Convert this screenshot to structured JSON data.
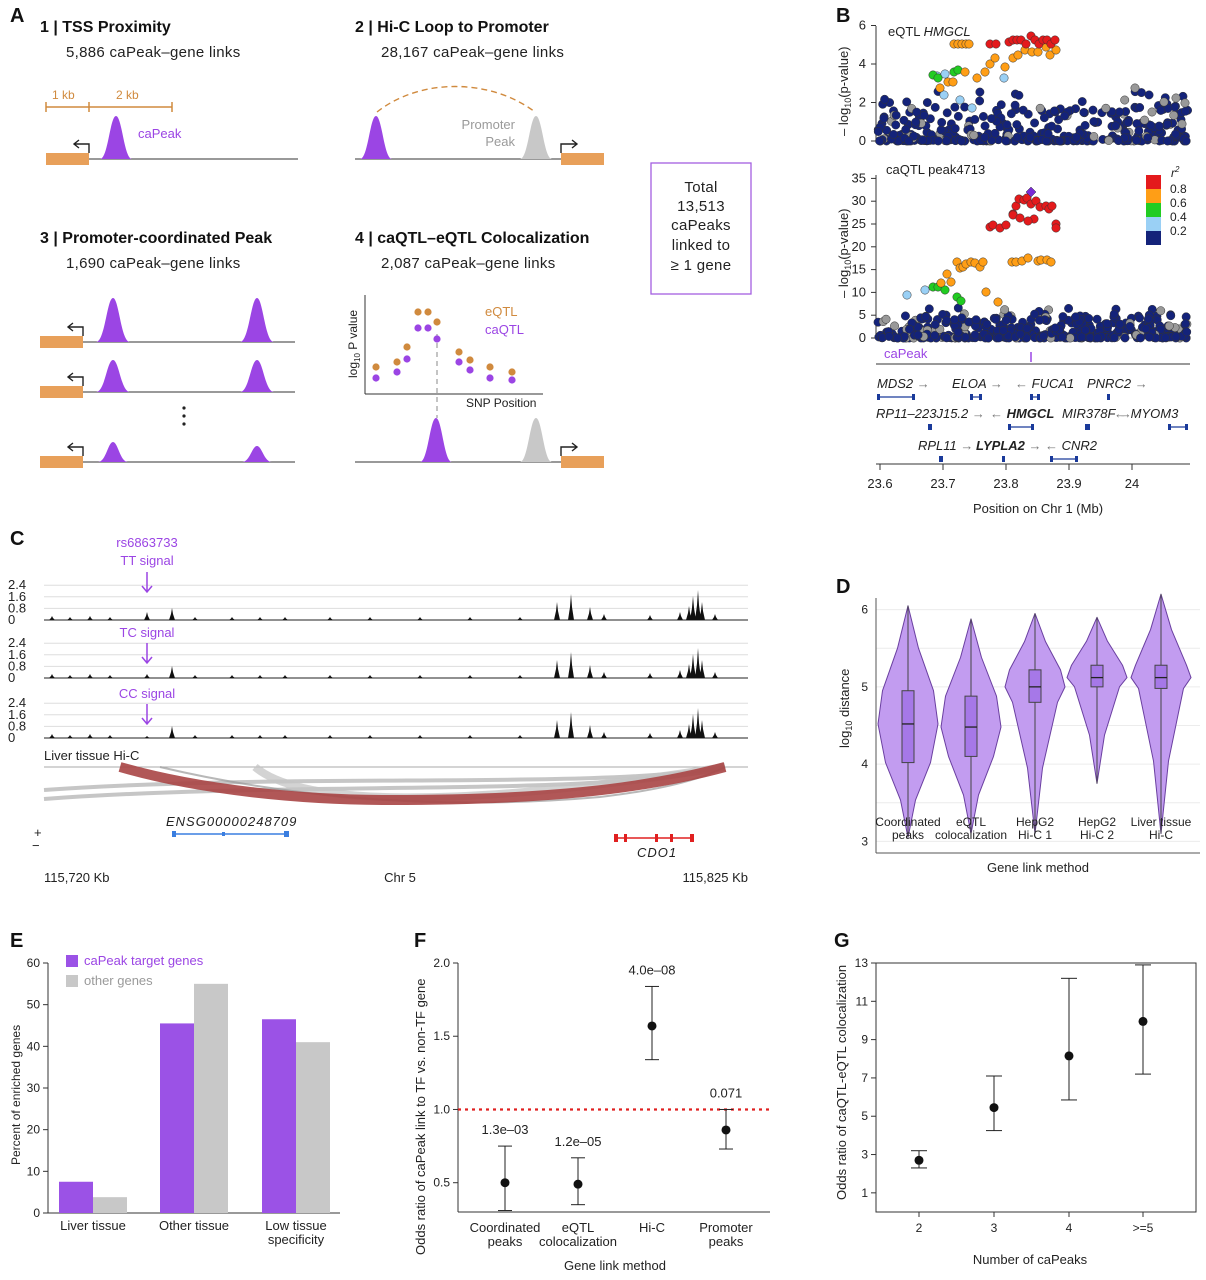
{
  "figure": {
    "panel_labels": [
      "A",
      "B",
      "C",
      "D",
      "E",
      "F",
      "G"
    ],
    "colors": {
      "purple": "#9b45e4",
      "orange": "#d08a3e",
      "gray": "#c8c8c8",
      "red": "#e02020",
      "navy": "#1a237e"
    },
    "panelA": {
      "methods": [
        {
          "title": "1 | TSS Proximity",
          "links": "5,886 caPeak–gene links"
        },
        {
          "title": "2 | Hi-C Loop to Promoter",
          "links": "28,167 caPeak–gene links"
        },
        {
          "title": "3 | Promoter-coordinated Peak",
          "links": "1,690 caPeak–gene links"
        },
        {
          "title": "4 | caQTL–eQTL Colocalization",
          "links": "2,087 caPeak–gene links"
        }
      ],
      "label_1kb": "1 kb",
      "label_2kb": "2 kb",
      "capeak_label": "caPeak",
      "promoter_peak_1": "Promoter",
      "promoter_peak_2": "Peak",
      "legend_eqtl": "eQTL",
      "legend_caqtl": "caQTL",
      "ylabel_prefix": "log",
      "ylabel_sub": "10",
      "ylabel_suffix": " P value",
      "xlabel": "SNP Position",
      "total_lines": [
        "Total",
        "13,513",
        "caPeaks",
        "linked to",
        "≥ 1 gene"
      ]
    },
    "panelB": {
      "top_title_prefix": "eQTL ",
      "top_title_gene": "HMGCL",
      "bottom_title": "caQTL peak4713",
      "top_yticks": [
        "0",
        "2",
        "4",
        "6"
      ],
      "bottom_yticks": [
        "0",
        "5",
        "10",
        "15",
        "20",
        "25",
        "30",
        "35"
      ],
      "ylabel_prefix": "– log",
      "ylabel_sub": "10",
      "ylabel_suffix": "(p-value)",
      "legend_title": "r",
      "legend_title_sup": "2",
      "legend_ticks": [
        "0.8",
        "0.6",
        "0.4",
        "0.2"
      ],
      "capeak_label": "caPeak",
      "genes": [
        {
          "name": "MDS2",
          "dir": "→"
        },
        {
          "name": "ELOA",
          "dir": "→"
        },
        {
          "name": "FUCA1",
          "dir": "←"
        },
        {
          "name": "PNRC2",
          "dir": "→"
        },
        {
          "name": "RP11–223J15.2",
          "dir": "→"
        },
        {
          "name": "HMGCL",
          "dir": "←"
        },
        {
          "name": "MIR378F",
          "dir": "→"
        },
        {
          "name": "MYOM3",
          "dir": "←"
        },
        {
          "name": "RPL11",
          "dir": "→"
        },
        {
          "name": "LYPLA2",
          "dir": "→"
        },
        {
          "name": "CNR2",
          "dir": "←"
        }
      ],
      "xticks": [
        "23.6",
        "23.7",
        "23.8",
        "23.9",
        "24"
      ],
      "xlabel": "Position on Chr 1 (Mb)"
    },
    "panelC": {
      "snp": "rs6863733",
      "tracks": [
        "TT signal",
        "TC signal",
        "CC signal"
      ],
      "yticks": [
        "2.4",
        "1.6",
        "0.8",
        "0"
      ],
      "hic_label": "Liver tissue Hi-C",
      "gene1": "ENSG00000248709",
      "gene2": "CDO1",
      "strand_plus": "+",
      "strand_minus": "−",
      "x_left": "115,720 Kb",
      "x_mid": "Chr 5",
      "x_right": "115,825 Kb"
    },
    "panelE": {
      "legend": [
        "caPeak target genes",
        "other genes"
      ],
      "ylabel": "Percent of enriched genes",
      "yticks": [
        "0",
        "10",
        "20",
        "30",
        "40",
        "50",
        "60"
      ]
    },
    "panelG": {
      "ylabel": "Odds ratio of caQTL-eQTL colocalization",
      "xlabel": "Number of caPeaks",
      "yticks": [
        "1",
        "3",
        "5",
        "7",
        "9",
        "11",
        "13"
      ]
    }
  },
  "chart_data": [
    {
      "panel": "D",
      "type": "violin",
      "categories": [
        [
          "Coordinated",
          "peaks"
        ],
        [
          "eQTL",
          "colocalization"
        ],
        [
          "HepG2",
          "Hi-C 1"
        ],
        [
          "HepG2",
          "Hi-C 2"
        ],
        [
          "Liver tissue",
          "Hi-C"
        ]
      ],
      "ylabel_prefix": "log",
      "ylabel_sub": "10",
      "ylabel_suffix": " distance",
      "xlabel": "Gene link method",
      "ylim": [
        2.85,
        6.15
      ],
      "yticks": [
        3,
        4,
        5,
        6
      ],
      "series": [
        {
          "min": 3.05,
          "q1": 4.02,
          "median": 4.52,
          "q3": 4.95,
          "max": 6.05
        },
        {
          "min": 3.1,
          "q1": 4.1,
          "median": 4.48,
          "q3": 4.88,
          "max": 5.88
        },
        {
          "min": 3.1,
          "q1": 4.8,
          "median": 5.0,
          "q3": 5.22,
          "max": 5.95
        },
        {
          "min": 3.75,
          "q1": 5.0,
          "median": 5.12,
          "q3": 5.28,
          "max": 5.9
        },
        {
          "min": 3.1,
          "q1": 4.98,
          "median": 5.12,
          "q3": 5.28,
          "max": 6.2
        }
      ]
    },
    {
      "panel": "E",
      "type": "bar",
      "categories": [
        [
          "Liver tissue"
        ],
        [
          "Other tissue"
        ],
        [
          "Low tissue",
          "specificity"
        ]
      ],
      "series": [
        {
          "name": "caPeak target genes",
          "values": [
            7.5,
            45.5,
            46.5
          ]
        },
        {
          "name": "other genes",
          "values": [
            3.8,
            55,
            41
          ]
        }
      ],
      "ylim": [
        0,
        60
      ]
    },
    {
      "panel": "F",
      "type": "scatter",
      "categories": [
        [
          "Coordinated",
          "peaks"
        ],
        [
          "eQTL",
          "colocalization"
        ],
        [
          "Hi-C"
        ],
        [
          "Promoter",
          "peaks"
        ]
      ],
      "values": [
        0.5,
        0.49,
        1.57,
        0.86
      ],
      "lower": [
        0.31,
        0.35,
        1.34,
        0.73
      ],
      "upper": [
        0.75,
        0.67,
        1.84,
        1.0
      ],
      "annotations": [
        "1.3e–03",
        "1.2e–05",
        "4.0e–08",
        "0.071"
      ],
      "ylabel": "Odds ratio of caPeak link to TF vs. non-TF gene",
      "xlabel": "Gene link method",
      "ylim": [
        0.3,
        2.0
      ],
      "yticks": [
        "0.5",
        "1.0",
        "1.5",
        "2.0"
      ],
      "reference_line": 1.0
    },
    {
      "panel": "G",
      "type": "scatter",
      "categories": [
        "2",
        "3",
        "4",
        ">=5"
      ],
      "values": [
        2.7,
        5.45,
        8.15,
        9.95
      ],
      "lower": [
        2.3,
        4.25,
        5.85,
        7.2
      ],
      "upper": [
        3.2,
        7.1,
        12.2,
        12.9
      ],
      "ylim": [
        0,
        13
      ]
    }
  ]
}
